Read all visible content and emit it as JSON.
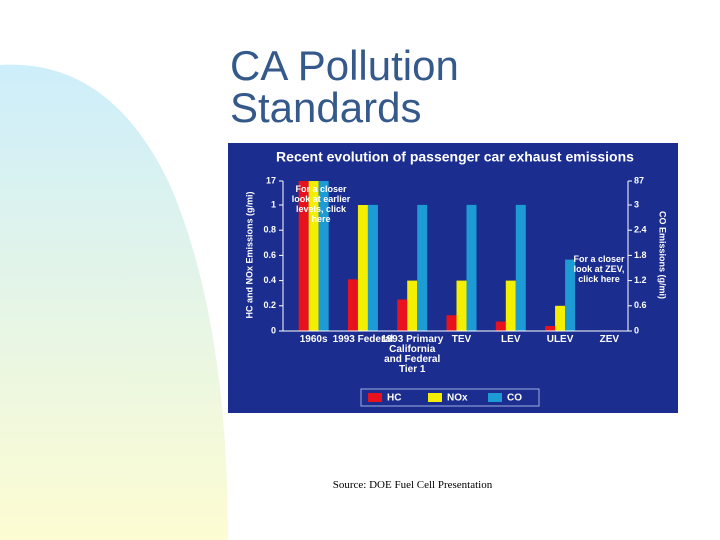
{
  "slide_title": "CA Pollution Standards",
  "source": "Source: DOE Fuel Cell Presentation",
  "chart_data": {
    "type": "bar",
    "title": "Recent evolution of passenger car exhaust emissions",
    "y_label": "HC and NOx Emissions (g/mi)",
    "y2_label": "CO Emissions (g/mi)",
    "categories": [
      "1960s",
      "1993 Federal",
      "1993 Primary California and Federal Tier 1",
      "TEV",
      "LEV",
      "ULEV",
      "ZEV"
    ],
    "series": [
      {
        "name": "HC",
        "color": "#e8121e",
        "values": [
          17,
          0.41,
          0.25,
          0.125,
          0.075,
          0.04,
          0
        ]
      },
      {
        "name": "NOx",
        "color": "#f4ef00",
        "values": [
          17,
          1.0,
          0.4,
          0.4,
          0.4,
          0.2,
          0
        ]
      },
      {
        "name": "CO",
        "color": "#1d9bd4",
        "axis": "y2",
        "values": [
          87,
          3.4,
          3.4,
          3.4,
          3.4,
          1.7,
          0
        ]
      }
    ],
    "ylim": [
      0,
      17
    ],
    "yticks": [
      0,
      0.2,
      0.4,
      0.6,
      0.8,
      1,
      17
    ],
    "y2lim": [
      0,
      87
    ],
    "y2ticks": [
      0,
      0.6,
      1.2,
      1.8,
      2.4,
      3.0,
      87
    ],
    "annotations": [
      "For a closer look at earlier levels, click here",
      "For a closer look at ZEV, click here"
    ],
    "legend": "bottom"
  }
}
